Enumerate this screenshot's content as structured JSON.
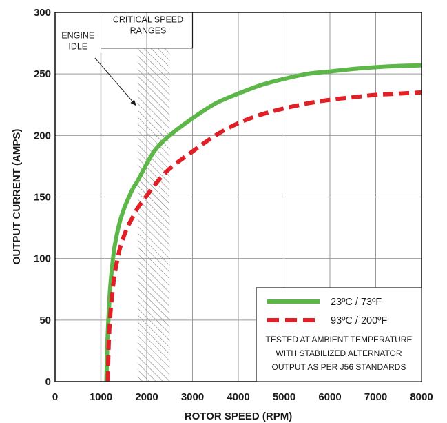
{
  "chart_data": {
    "type": "line",
    "title": "",
    "xlabel": "ROTOR SPEED (RPM)",
    "ylabel": "OUTPUT CURRENT (AMPS)",
    "xlim": [
      0,
      8000
    ],
    "ylim": [
      0,
      300
    ],
    "xticks": [
      "0",
      "1000",
      "2000",
      "3000",
      "4000",
      "5000",
      "6000",
      "7000",
      "8000"
    ],
    "yticks": [
      "0",
      "50",
      "100",
      "150",
      "200",
      "250",
      "300"
    ],
    "grid": true,
    "series": [
      {
        "name": "23ºC / 73ºF",
        "color": "#5cb748",
        "style": "solid",
        "x": [
          1120,
          1140,
          1170,
          1200,
          1250,
          1300,
          1400,
          1500,
          1600,
          1700,
          1800,
          2000,
          2200,
          2500,
          3000,
          3500,
          4000,
          4500,
          5000,
          5500,
          6000,
          6500,
          7000,
          7500,
          8000
        ],
        "y": [
          0,
          30,
          55,
          75,
          95,
          110,
          128,
          140,
          149,
          157,
          163,
          177,
          189,
          200,
          214,
          226,
          234,
          241,
          246,
          250,
          252,
          254,
          255.5,
          256.5,
          257
        ]
      },
      {
        "name": "93ºC / 200ºF",
        "color": "#e11f26",
        "style": "dashed",
        "x": [
          1150,
          1170,
          1200,
          1250,
          1300,
          1400,
          1500,
          1600,
          1700,
          1800,
          1900,
          2000,
          2200,
          2500,
          3000,
          3500,
          4000,
          4500,
          5000,
          5500,
          6000,
          6500,
          7000,
          7500,
          8000
        ],
        "y": [
          0,
          30,
          52,
          72,
          87,
          106,
          118,
          127,
          134,
          141,
          146,
          151,
          161,
          173,
          187,
          200,
          210,
          217,
          222,
          226,
          229,
          231,
          233,
          234,
          235
        ]
      }
    ],
    "annotations": {
      "engine_idle": "ENGINE IDLE",
      "engine_idle_lines": [
        "ENGINE",
        "IDLE"
      ],
      "engine_idle_rpm": 1000,
      "critical_speed": "CRITICAL SPEED RANGES",
      "critical_speed_lines": [
        "CRITICAL SPEED",
        "RANGES"
      ],
      "critical_speed_bracket_rpm": [
        1000,
        3000
      ],
      "critical_band_rpm": [
        1800,
        2500
      ]
    },
    "legend": {
      "position": "bottom-right",
      "entries": [
        "23ºC / 73ºF",
        "93ºC / 200ºF"
      ],
      "note": "TESTED AT AMBIENT TEMPERATURE WITH STABILIZED ALTERNATOR OUTPUT AS PER J56 STANDARDS",
      "note_lines": [
        "TESTED AT AMBIENT TEMPERATURE",
        "WITH  STABILIZED ALTERNATOR",
        "OUTPUT AS PER J56 STANDARDS"
      ]
    }
  }
}
